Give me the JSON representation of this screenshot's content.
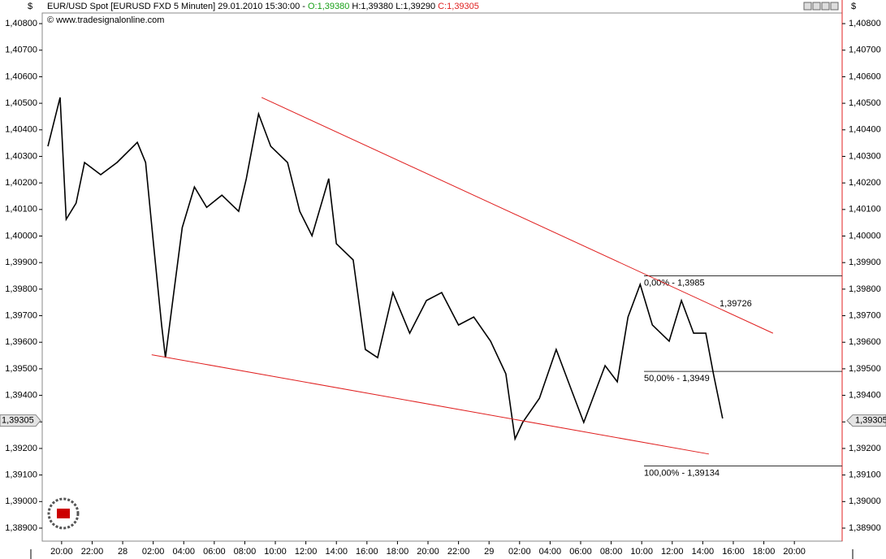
{
  "chart_data": {
    "type": "line",
    "currency_symbol": "$",
    "title": "EUR/USD Spot [EURUSD FXD  5 Minuten] 29.01.2010 15:30:00 - ",
    "open_label": "O:1,39380",
    "high_low_label": "H:1,39380 L:1,39290",
    "close_label": "C:1,39305",
    "copyright": "© www.tradesignalonline.com",
    "series": [
      {
        "name": "EUR/USD",
        "color": "#000000",
        "x": [
          -4.9,
          -4.1,
          -3.7,
          -3.05,
          -2.5,
          -1.44,
          -0.37,
          0.96,
          1.5,
          2.02,
          2.55,
          2.8,
          3.35,
          3.9,
          4.7,
          5.5,
          6.5,
          7.6,
          8.1,
          8.9,
          9.7,
          10.8,
          11.6,
          12.4,
          13.5,
          14.0,
          15.1,
          15.9,
          16.7,
          17.7,
          18.8,
          19.9,
          20.9,
          22.0,
          23.0,
          24.1,
          25.1,
          25.7,
          26.2,
          27.3,
          28.4,
          29.4,
          30.2,
          31.6,
          32.4,
          33.1,
          33.9,
          34.7,
          35.8,
          36.6,
          37.4,
          38.2,
          38.7,
          39.3
        ],
        "values": [
          1.40338,
          1.40522,
          1.40063,
          1.40124,
          1.40277,
          1.40231,
          1.40277,
          1.40353,
          1.40277,
          1.39971,
          1.39665,
          1.39542,
          1.39787,
          1.40032,
          1.40185,
          1.40108,
          1.40154,
          1.40093,
          1.40216,
          1.4046,
          1.40338,
          1.40277,
          1.40093,
          1.40001,
          1.40216,
          1.39971,
          1.3991,
          1.39573,
          1.39542,
          1.39787,
          1.39634,
          1.39757,
          1.39787,
          1.39665,
          1.39695,
          1.39604,
          1.39481,
          1.39236,
          1.39298,
          1.39389,
          1.39573,
          1.3942,
          1.39298,
          1.39512,
          1.39451,
          1.39695,
          1.39818,
          1.39665,
          1.39604,
          1.39757,
          1.39634,
          1.39634,
          1.39481,
          1.39313
        ]
      }
    ],
    "trendlines": [
      {
        "color": "#e02020",
        "x": [
          9.1,
          42.6
        ],
        "values": [
          1.40522,
          1.39634
        ]
      },
      {
        "color": "#e02020",
        "x": [
          1.9,
          38.4
        ],
        "values": [
          1.39553,
          1.39179
        ]
      }
    ],
    "levels": [
      {
        "value": 1.3985,
        "label": "0,00% - 1,3985"
      },
      {
        "value": 1.3949,
        "label": "50,00% - 1,3949"
      },
      {
        "value": 1.39134,
        "label": "100,00% - 1,39134"
      }
    ],
    "annotation": "1,39726",
    "last": {
      "value": 1.39305,
      "label": "1,39305"
    },
    "xlim": [
      -5.27,
      47.13
    ],
    "ylim": [
      1.38851,
      1.4084
    ],
    "xticks": [
      {
        "value": -4,
        "label": "20:00"
      },
      {
        "value": -2,
        "label": "22:00"
      },
      {
        "value": 0,
        "label": "28"
      },
      {
        "value": 2,
        "label": "02:00"
      },
      {
        "value": 4,
        "label": "04:00"
      },
      {
        "value": 6,
        "label": "06:00"
      },
      {
        "value": 8,
        "label": "08:00"
      },
      {
        "value": 10,
        "label": "10:00"
      },
      {
        "value": 12,
        "label": "12:00"
      },
      {
        "value": 14,
        "label": "14:00"
      },
      {
        "value": 16,
        "label": "16:00"
      },
      {
        "value": 18,
        "label": "18:00"
      },
      {
        "value": 20,
        "label": "20:00"
      },
      {
        "value": 22,
        "label": "22:00"
      },
      {
        "value": 24,
        "label": "29"
      },
      {
        "value": 26,
        "label": "02:00"
      },
      {
        "value": 28,
        "label": "04:00"
      },
      {
        "value": 30,
        "label": "06:00"
      },
      {
        "value": 32,
        "label": "08:00"
      },
      {
        "value": 34,
        "label": "10:00"
      },
      {
        "value": 36,
        "label": "12:00"
      },
      {
        "value": 38,
        "label": "14:00"
      },
      {
        "value": 40,
        "label": "16:00"
      },
      {
        "value": 42,
        "label": "18:00"
      },
      {
        "value": 44,
        "label": "20:00"
      }
    ],
    "yticks": [
      {
        "value": 1.408,
        "label": "1,40800"
      },
      {
        "value": 1.407,
        "label": "1,40700"
      },
      {
        "value": 1.406,
        "label": "1,40600"
      },
      {
        "value": 1.405,
        "label": "1,40500"
      },
      {
        "value": 1.404,
        "label": "1,40400"
      },
      {
        "value": 1.403,
        "label": "1,40300"
      },
      {
        "value": 1.402,
        "label": "1,40200"
      },
      {
        "value": 1.401,
        "label": "1,40100"
      },
      {
        "value": 1.4,
        "label": "1,40000"
      },
      {
        "value": 1.399,
        "label": "1,39900"
      },
      {
        "value": 1.398,
        "label": "1,39800"
      },
      {
        "value": 1.397,
        "label": "1,39700"
      },
      {
        "value": 1.396,
        "label": "1,39600"
      },
      {
        "value": 1.395,
        "label": "1,39500"
      },
      {
        "value": 1.394,
        "label": "1,39400"
      },
      {
        "value": 1.393,
        "label": "1,39300"
      },
      {
        "value": 1.392,
        "label": "1,39200"
      },
      {
        "value": 1.391,
        "label": "1,39100"
      },
      {
        "value": 1.39,
        "label": "1,39000"
      },
      {
        "value": 1.389,
        "label": "1,38900"
      }
    ]
  }
}
